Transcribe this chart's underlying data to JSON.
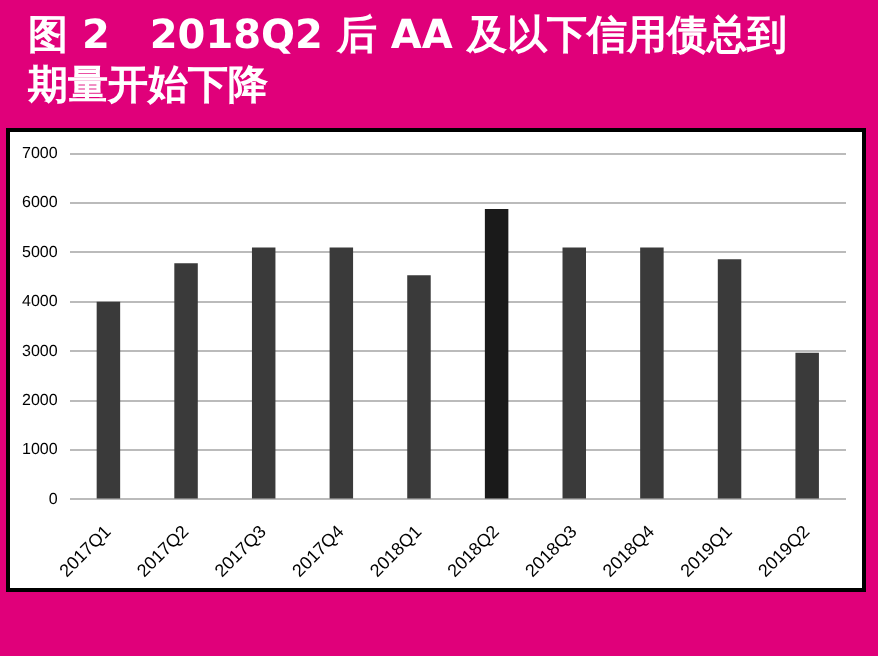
{
  "chart_data": {
    "type": "bar",
    "title": "图 2　2018Q2 后 AA 及以下信用债总到期量开始下降",
    "categories": [
      "2017Q1",
      "2017Q2",
      "2017Q3",
      "2017Q4",
      "2018Q1",
      "2018Q2",
      "2018Q3",
      "2018Q4",
      "2019Q1",
      "2019Q2"
    ],
    "values": [
      4000,
      4780,
      5100,
      5100,
      4540,
      5880,
      5100,
      5100,
      4860,
      2970
    ],
    "colors": [
      "#3a3a3a",
      "#3a3a3a",
      "#3a3a3a",
      "#3a3a3a",
      "#3a3a3a",
      "#1a1a1a",
      "#3a3a3a",
      "#3a3a3a",
      "#3a3a3a",
      "#3a3a3a"
    ],
    "ylim": [
      0,
      7000
    ],
    "yticks": [
      0,
      1000,
      2000,
      3000,
      4000,
      5000,
      6000,
      7000
    ],
    "grid": "y",
    "legend": false
  }
}
